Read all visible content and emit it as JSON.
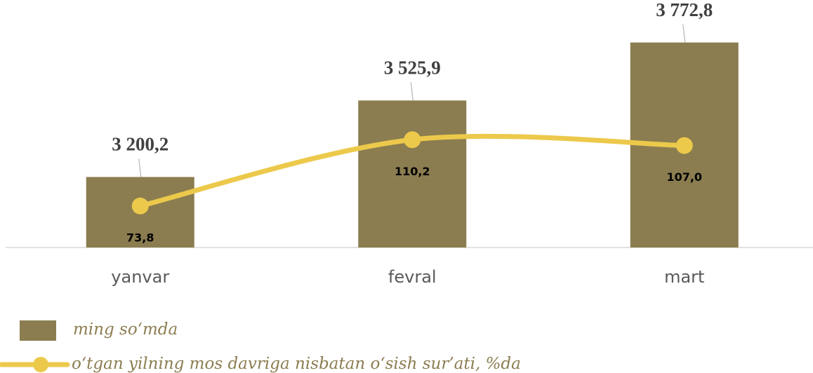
{
  "chart_data": {
    "type": "bar",
    "categories": [
      "yanvar",
      "fevral",
      "mart"
    ],
    "series": [
      {
        "name": "ming so‘mda",
        "type": "bar",
        "color": "#8b7d50",
        "values": [
          3200.2,
          3525.9,
          3772.8
        ],
        "value_labels": [
          "3 200,2",
          "3 525,9",
          "3 772,8"
        ]
      },
      {
        "name": "o‘tgan yilning mos davriga nisbatan o‘sish sur’ati, %da",
        "type": "line",
        "axis": "y2",
        "color": "#ecc94b",
        "values": [
          73.8,
          110.2,
          107.0
        ],
        "value_labels": [
          "73,8",
          "110,2",
          "107,0"
        ]
      }
    ],
    "ylim": [
      2900,
      3900
    ],
    "y2lim": [
      51,
      180
    ]
  }
}
